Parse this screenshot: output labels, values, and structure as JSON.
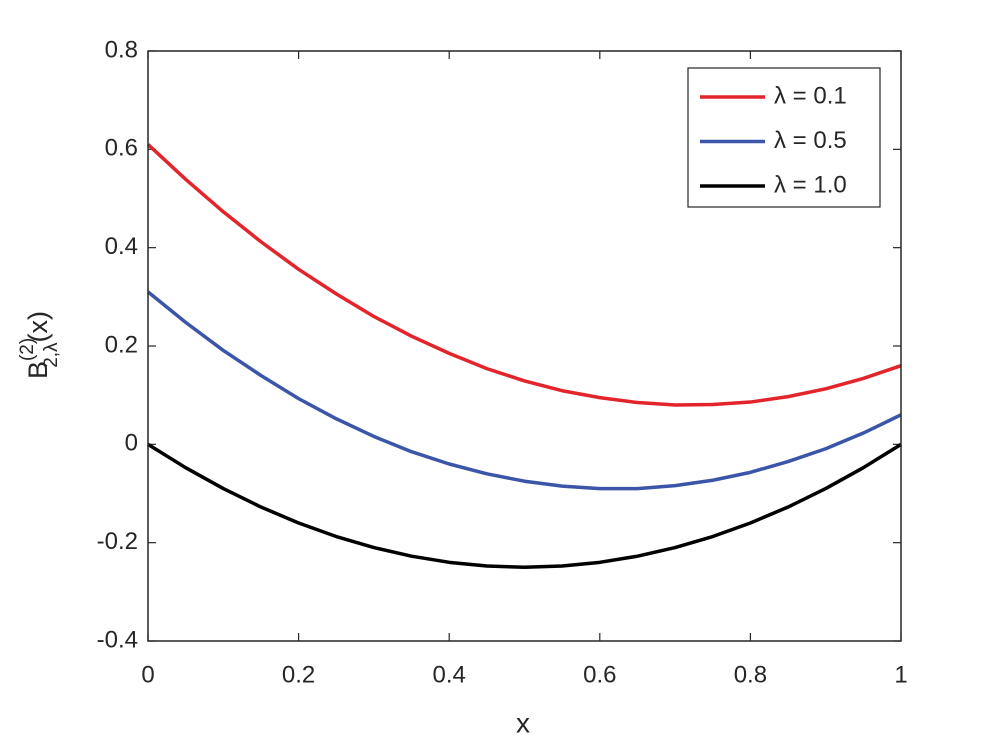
{
  "chart_data": {
    "type": "line",
    "xlabel": "x",
    "ylabel": {
      "base": "B",
      "sup": "(2)",
      "sub": "2,λ",
      "arg": "(x)"
    },
    "x": [
      0,
      0.05,
      0.1,
      0.15,
      0.2,
      0.25,
      0.3,
      0.35,
      0.4,
      0.45,
      0.5,
      0.55,
      0.6,
      0.65,
      0.7,
      0.75,
      0.8,
      0.85,
      0.9,
      0.95,
      1
    ],
    "series": [
      {
        "name": "λ = 0.1",
        "color": "#e3242b",
        "values": [
          0.61,
          0.539,
          0.473,
          0.412,
          0.356,
          0.306,
          0.26,
          0.22,
          0.185,
          0.154,
          0.129,
          0.109,
          0.095,
          0.085,
          0.08,
          0.081,
          0.086,
          0.097,
          0.113,
          0.134,
          0.16
        ]
      },
      {
        "name": "λ = 0.5",
        "color": "#3b55a8",
        "values": [
          0.31,
          0.248,
          0.191,
          0.14,
          0.093,
          0.052,
          0.016,
          -0.015,
          -0.04,
          -0.06,
          -0.075,
          -0.085,
          -0.09,
          -0.09,
          -0.084,
          -0.073,
          -0.057,
          -0.035,
          -0.009,
          0.023,
          0.06
        ]
      },
      {
        "name": "λ = 1.0",
        "color": "#000000",
        "values": [
          0,
          -0.0475,
          -0.09,
          -0.1275,
          -0.16,
          -0.1875,
          -0.21,
          -0.2275,
          -0.24,
          -0.2475,
          -0.25,
          -0.2475,
          -0.24,
          -0.2275,
          -0.21,
          -0.1875,
          -0.16,
          -0.1275,
          -0.09,
          -0.0475,
          0
        ]
      }
    ],
    "xlim": [
      0,
      1
    ],
    "xticks": [
      0,
      0.2,
      0.4,
      0.6,
      0.8,
      1
    ],
    "ylim": [
      -0.4,
      0.8
    ],
    "yticks": [
      -0.4,
      -0.2,
      0,
      0.2,
      0.4,
      0.6,
      0.8
    ],
    "grid": false,
    "legend": "top-right"
  }
}
